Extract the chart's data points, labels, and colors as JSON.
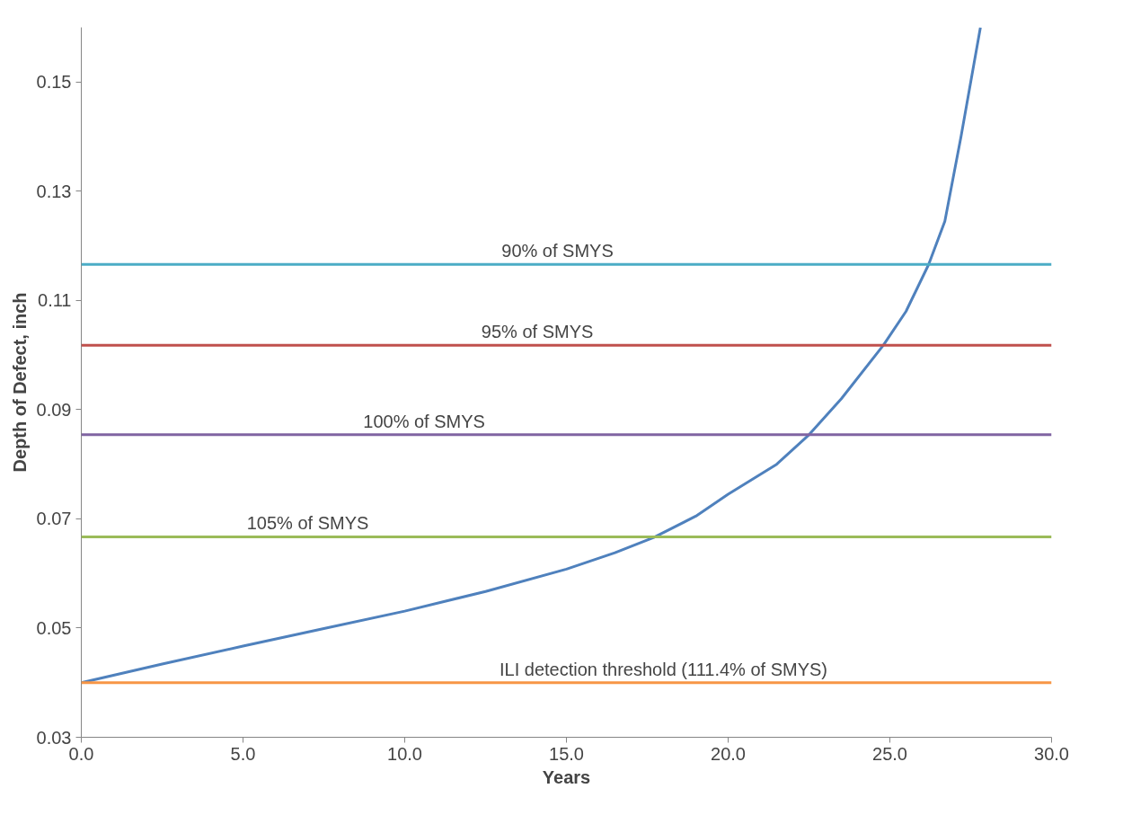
{
  "chart_data": {
    "type": "line",
    "xlabel": "Years",
    "ylabel": "Depth of Defect, inch",
    "xlim": [
      0,
      30
    ],
    "xticks": [
      {
        "value": 0,
        "label": "0.0"
      },
      {
        "value": 5,
        "label": "5.0"
      },
      {
        "value": 10,
        "label": "10.0"
      },
      {
        "value": 15,
        "label": "15.0"
      },
      {
        "value": 20,
        "label": "20.0"
      },
      {
        "value": 25,
        "label": "25.0"
      },
      {
        "value": 30,
        "label": "30.0"
      }
    ],
    "ylim": [
      0.03,
      0.16
    ],
    "yticks": [
      0.03,
      0.05,
      0.07,
      0.09,
      0.11,
      0.13,
      0.15
    ],
    "grid": false,
    "marker": "none",
    "line_style": "solid",
    "series": [
      {
        "color": "#4f81bd",
        "x": [
          0,
          2.5,
          5,
          7.5,
          10,
          12.5,
          15,
          16.5,
          17.7,
          19,
          20,
          21.5,
          22.5,
          23.5,
          24.8,
          25.5,
          26.2,
          26.7,
          27.2,
          27.8
        ],
        "values": [
          0.04,
          0.0434,
          0.0467,
          0.0499,
          0.0531,
          0.0567,
          0.0608,
          0.0638,
          0.0666,
          0.0705,
          0.0745,
          0.08,
          0.0854,
          0.092,
          0.1018,
          0.108,
          0.1166,
          0.1245,
          0.14,
          0.16
        ]
      }
    ],
    "ref_lines": [
      {
        "axis": "y",
        "value": 0.1166,
        "color": "#4bacc6"
      },
      {
        "axis": "y",
        "value": 0.1018,
        "color": "#c0504d"
      },
      {
        "axis": "y",
        "value": 0.0854,
        "color": "#8064a2"
      },
      {
        "axis": "y",
        "value": 0.0667,
        "color": "#9bbb59"
      },
      {
        "axis": "y",
        "value": 0.04,
        "color": "#f79646"
      }
    ],
    "annotations": [
      {
        "text": "90% of  SMYS",
        "x": 14.8,
        "y": 0.1166
      },
      {
        "text": "95% of SMYS",
        "x": 14.1,
        "y": 0.1018
      },
      {
        "text": "100% of SMYS",
        "x": 10.6,
        "y": 0.0854
      },
      {
        "text": "105% of SMYS",
        "x": 7.0,
        "y": 0.0667
      },
      {
        "text": "ILI detection threshold (111.4% of SMYS)",
        "x": 18.0,
        "y": 0.04
      }
    ]
  }
}
